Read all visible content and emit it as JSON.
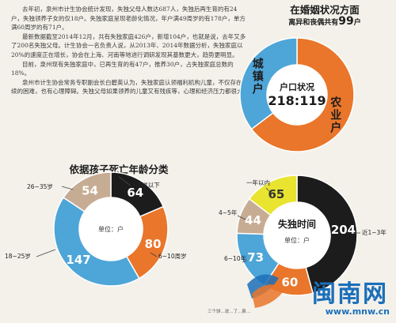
{
  "article": {
    "paragraphs": [
      "去年初，泉州市计生协会统计发现，失独父母人数达687人，失独后再生育的有24户，失独领养子女的仅18户。失独家庭呈现老龄化情况，年户满49周岁的有178户，单方满60周岁的有71户。",
      "最新数据截至2014年12月，共有失独家庭426户，新增104户，也就是说，去年又多了200名失独父母。计生协会一名负责人说，从2013年、2014年数据分析，失独家庭以20%的速度正在增长，协会在上海、河南等地进行调研发现其基数更大，趋势更明显。",
      "目前，泉州现有失独家庭中，已再生育的有47户，推养30户，占失独家庭总数的18%。",
      "泉州市计生协会常务专职副会长白碧英认为，失独家庭认领福利机构儿童，不仅存在手续的困难，也有心理障碍。失独父母如果领养的儿童又有残疾等，心理和经济压力都很大。"
    ]
  },
  "marriage": {
    "title": "在婚姻状况方面",
    "subtitle_prefix": "离异和丧偶共有",
    "subtitle_number": "99",
    "subtitle_suffix": "户"
  },
  "age_chart": {
    "title": "依据孩子死亡年龄分类"
  },
  "watermark": {
    "brand": "闽南网",
    "url": "www.mnw.cn"
  },
  "caption": "三个饼...说...了...泉...",
  "colors": {
    "orange": "#e9762a",
    "blue": "#4ea5d8",
    "black": "#1c1c1c",
    "tan": "#c7ac94",
    "yellow": "#e8e430",
    "brand_blue": "#1b6fb9"
  },
  "chart_data": [
    {
      "type": "pie",
      "donut": true,
      "center_label": "户口状况",
      "center_value": "218:119",
      "slices": [
        {
          "label": "农业户",
          "value": 218,
          "color": "#e9762a"
        },
        {
          "label": "城镇户",
          "value": 119,
          "color": "#4ea5d8"
        }
      ]
    },
    {
      "type": "pie",
      "donut": true,
      "title": "依据孩子死亡年龄分类",
      "center_label": "单位：户",
      "slices": [
        {
          "label": "5周岁以下",
          "value": 64,
          "color": "#1c1c1c"
        },
        {
          "label": "6~10周岁",
          "value": 80,
          "color": "#e9762a"
        },
        {
          "label": "18~25岁",
          "value": 147,
          "color": "#4ea5d8"
        },
        {
          "label": "26~35岁",
          "value": 54,
          "color": "#c7ac94"
        }
      ]
    },
    {
      "type": "pie",
      "donut": true,
      "title": "失独时间",
      "center_label": "单位：户",
      "slices": [
        {
          "label": "近1~3年",
          "value": 204,
          "color": "#1c1c1c"
        },
        {
          "label": "",
          "value": 60,
          "color": "#e9762a"
        },
        {
          "label": "6~10年",
          "value": 73,
          "color": "#4ea5d8"
        },
        {
          "label": "4~5年",
          "value": 44,
          "color": "#c7ac94"
        },
        {
          "label": "一年以内",
          "value": 65,
          "color": "#e8e430"
        }
      ]
    }
  ]
}
